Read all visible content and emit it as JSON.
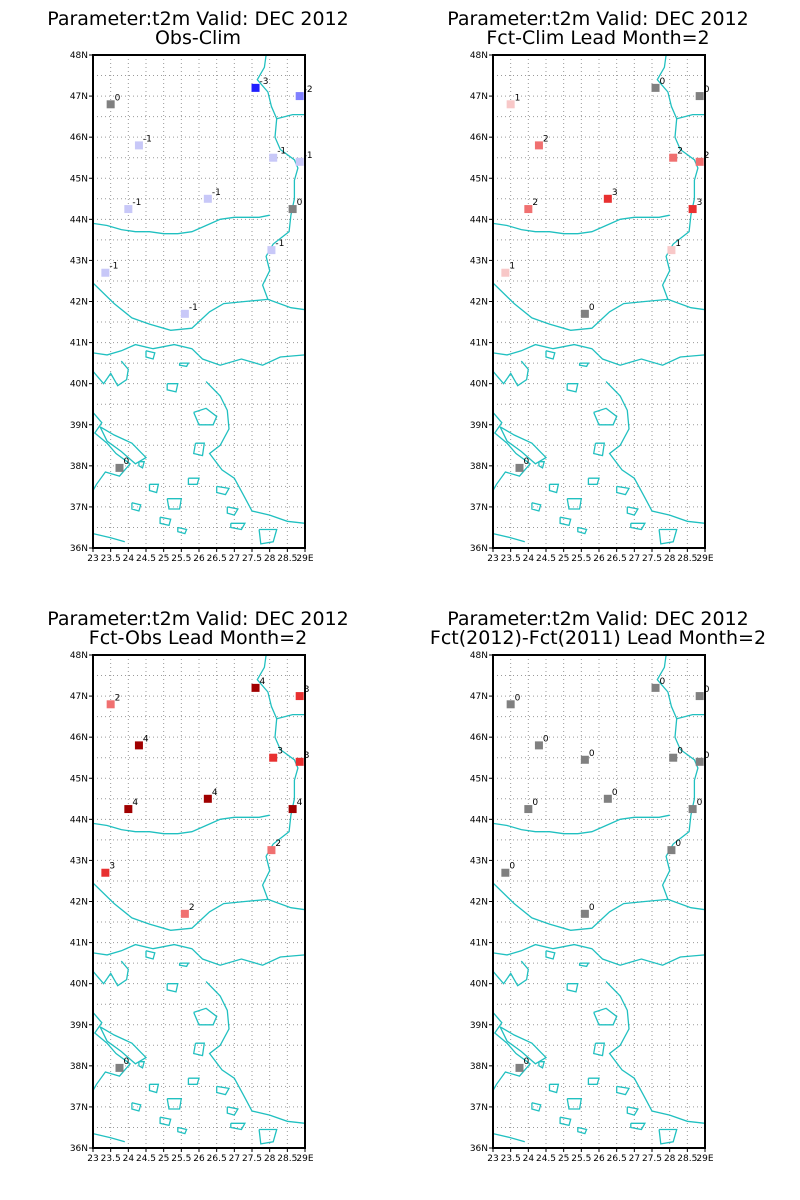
{
  "colors": {
    "coast": "#20c0c0",
    "grid": "#9a9a9a",
    "zero": "#808080",
    "neg1": "#c8c8f8",
    "neg2": "#8080ff",
    "neg3": "#2020ff",
    "pos1": "#f8c8c8",
    "pos2": "#f07070",
    "pos3": "#e83030",
    "pos4": "#a00000"
  },
  "y_tick_labels": [
    "36N",
    "37N",
    "38N",
    "39N",
    "40N",
    "41N",
    "42N",
    "43N",
    "44N",
    "45N",
    "46N",
    "47N",
    "48N"
  ],
  "x_tick_labels": [
    "23",
    "23.5",
    "24",
    "24.5",
    "25",
    "25.5",
    "26",
    "26.5",
    "27",
    "27.5",
    "28",
    "28.5",
    "29E"
  ],
  "chart_data": [
    {
      "type": "scatter",
      "title": "Parameter:t2m Valid: DEC 2012",
      "subtitle": "Obs-Clim",
      "xlim": [
        23,
        29
      ],
      "ylim": [
        36,
        48
      ],
      "points": [
        {
          "lon": 23.5,
          "lat": 46.8,
          "value": 0
        },
        {
          "lon": 24.3,
          "lat": 45.8,
          "value": -1
        },
        {
          "lon": 24.0,
          "lat": 44.25,
          "value": -1
        },
        {
          "lon": 23.35,
          "lat": 42.7,
          "value": -1
        },
        {
          "lon": 25.6,
          "lat": 41.7,
          "value": -1
        },
        {
          "lon": 26.25,
          "lat": 44.5,
          "value": -1
        },
        {
          "lon": 27.6,
          "lat": 47.2,
          "value": -3
        },
        {
          "lon": 28.85,
          "lat": 47.0,
          "value": -2
        },
        {
          "lon": 28.1,
          "lat": 45.5,
          "value": -1
        },
        {
          "lon": 28.85,
          "lat": 45.4,
          "value": -1
        },
        {
          "lon": 28.65,
          "lat": 44.25,
          "value": 0
        },
        {
          "lon": 28.05,
          "lat": 43.25,
          "value": -1
        },
        {
          "lon": 23.75,
          "lat": 37.95,
          "value": 0
        }
      ]
    },
    {
      "type": "scatter",
      "title": "Parameter:t2m Valid: DEC 2012",
      "subtitle": "Fct-Clim Lead Month=2",
      "xlim": [
        23,
        29
      ],
      "ylim": [
        36,
        48
      ],
      "points": [
        {
          "lon": 23.5,
          "lat": 46.8,
          "value": 1
        },
        {
          "lon": 24.3,
          "lat": 45.8,
          "value": 2
        },
        {
          "lon": 24.0,
          "lat": 44.25,
          "value": 2
        },
        {
          "lon": 23.35,
          "lat": 42.7,
          "value": 1
        },
        {
          "lon": 25.6,
          "lat": 41.7,
          "value": 0
        },
        {
          "lon": 26.25,
          "lat": 44.5,
          "value": 3
        },
        {
          "lon": 27.6,
          "lat": 47.2,
          "value": 0
        },
        {
          "lon": 28.85,
          "lat": 47.0,
          "value": 0
        },
        {
          "lon": 28.1,
          "lat": 45.5,
          "value": 2
        },
        {
          "lon": 28.85,
          "lat": 45.4,
          "value": 2
        },
        {
          "lon": 28.65,
          "lat": 44.25,
          "value": 3
        },
        {
          "lon": 28.05,
          "lat": 43.25,
          "value": 1
        },
        {
          "lon": 23.75,
          "lat": 37.95,
          "value": 0
        }
      ]
    },
    {
      "type": "scatter",
      "title": "Parameter:t2m Valid: DEC 2012",
      "subtitle": "Fct-Obs Lead Month=2",
      "xlim": [
        23,
        29
      ],
      "ylim": [
        36,
        48
      ],
      "points": [
        {
          "lon": 23.5,
          "lat": 46.8,
          "value": 2
        },
        {
          "lon": 24.3,
          "lat": 45.8,
          "value": 4
        },
        {
          "lon": 24.0,
          "lat": 44.25,
          "value": 4
        },
        {
          "lon": 23.35,
          "lat": 42.7,
          "value": 3
        },
        {
          "lon": 25.6,
          "lat": 41.7,
          "value": 2
        },
        {
          "lon": 26.25,
          "lat": 44.5,
          "value": 4
        },
        {
          "lon": 27.6,
          "lat": 47.2,
          "value": 4
        },
        {
          "lon": 28.85,
          "lat": 47.0,
          "value": 3
        },
        {
          "lon": 28.1,
          "lat": 45.5,
          "value": 3
        },
        {
          "lon": 28.85,
          "lat": 45.4,
          "value": 3
        },
        {
          "lon": 28.65,
          "lat": 44.25,
          "value": 4
        },
        {
          "lon": 28.05,
          "lat": 43.25,
          "value": 2
        },
        {
          "lon": 23.75,
          "lat": 37.95,
          "value": 0
        }
      ]
    },
    {
      "type": "scatter",
      "title": "Parameter:t2m Valid: DEC 2012",
      "subtitle": "Fct(2012)-Fct(2011) Lead Month=2",
      "xlim": [
        23,
        29
      ],
      "ylim": [
        36,
        48
      ],
      "points": [
        {
          "lon": 23.5,
          "lat": 46.8,
          "value": 0
        },
        {
          "lon": 24.3,
          "lat": 45.8,
          "value": 0
        },
        {
          "lon": 24.0,
          "lat": 44.25,
          "value": 0
        },
        {
          "lon": 23.35,
          "lat": 42.7,
          "value": 0
        },
        {
          "lon": 25.6,
          "lat": 41.7,
          "value": 0
        },
        {
          "lon": 25.6,
          "lat": 45.45,
          "value": 0
        },
        {
          "lon": 26.25,
          "lat": 44.5,
          "value": 0
        },
        {
          "lon": 27.6,
          "lat": 47.2,
          "value": 0
        },
        {
          "lon": 28.85,
          "lat": 47.0,
          "value": 0
        },
        {
          "lon": 28.1,
          "lat": 45.5,
          "value": 0
        },
        {
          "lon": 28.85,
          "lat": 45.4,
          "value": 0
        },
        {
          "lon": 28.65,
          "lat": 44.25,
          "value": 0
        },
        {
          "lon": 28.05,
          "lat": 43.25,
          "value": 0
        },
        {
          "lon": 23.75,
          "lat": 37.95,
          "value": 0
        }
      ]
    }
  ]
}
